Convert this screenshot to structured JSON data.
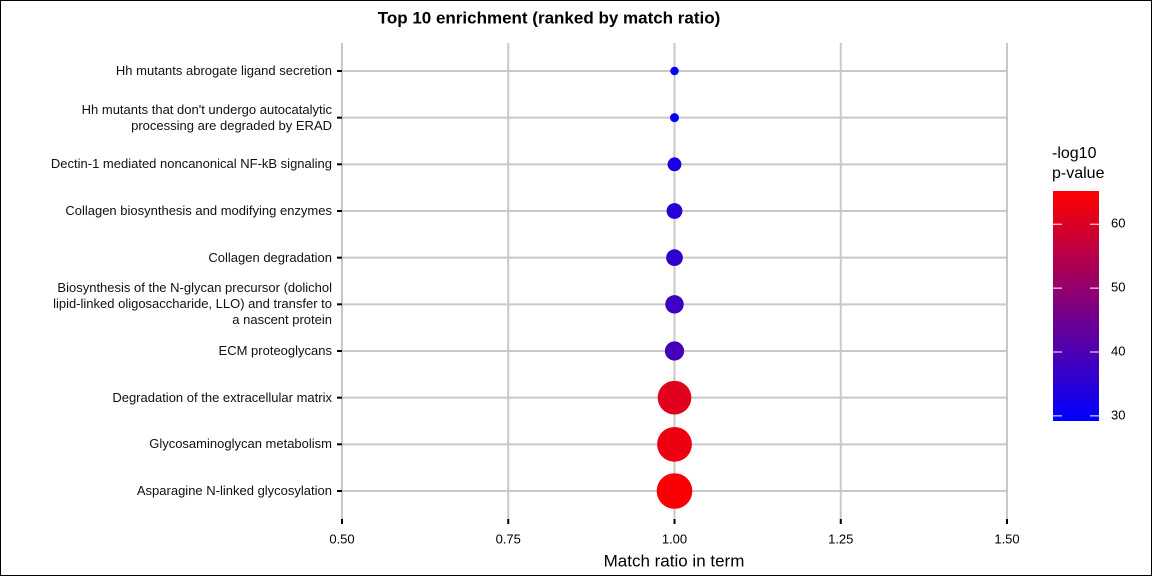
{
  "chart_data": {
    "type": "dot",
    "title": "Top 10 enrichment (ranked by match ratio)",
    "x_label": "Match ratio in term",
    "categories": [
      "Hh mutants abrogate ligand secretion",
      "Hh mutants that don't undergo autocatalytic\nprocessing are degraded by ERAD",
      "Dectin-1 mediated noncanonical NF-kB signaling",
      "Collagen biosynthesis and modifying enzymes",
      "Collagen degradation",
      "Biosynthesis of the N-glycan precursor (dolichol\nlipid-linked oligosaccharide, LLO) and transfer to\na nascent protein",
      "ECM proteoglycans",
      "Degradation of the extracellular matrix",
      "Glycosaminoglycan metabolism",
      "Asparagine N-linked glycosylation"
    ],
    "values": [
      1,
      1,
      1,
      1,
      1,
      1,
      1,
      1,
      1,
      1
    ],
    "color_label": "-log10\np-value",
    "color_values": [
      29.3,
      29.5,
      33,
      35,
      36,
      38,
      39,
      61,
      63,
      64.5
    ],
    "colors": [
      "#0000ff",
      "#ff0000"
    ],
    "color_lim": [
      29.2,
      65.2
    ],
    "color_ticks": [
      30,
      40,
      50,
      60
    ],
    "xlim": [
      0.5,
      1.5
    ],
    "xticks": [
      {
        "value": 0.5,
        "label": "0.50"
      },
      {
        "value": 0.75,
        "label": "0.75"
      },
      {
        "value": 1,
        "label": "1.00"
      },
      {
        "value": 1.25,
        "label": "1.25"
      },
      {
        "value": 1.5,
        "label": "1.50"
      }
    ],
    "grid": true
  }
}
